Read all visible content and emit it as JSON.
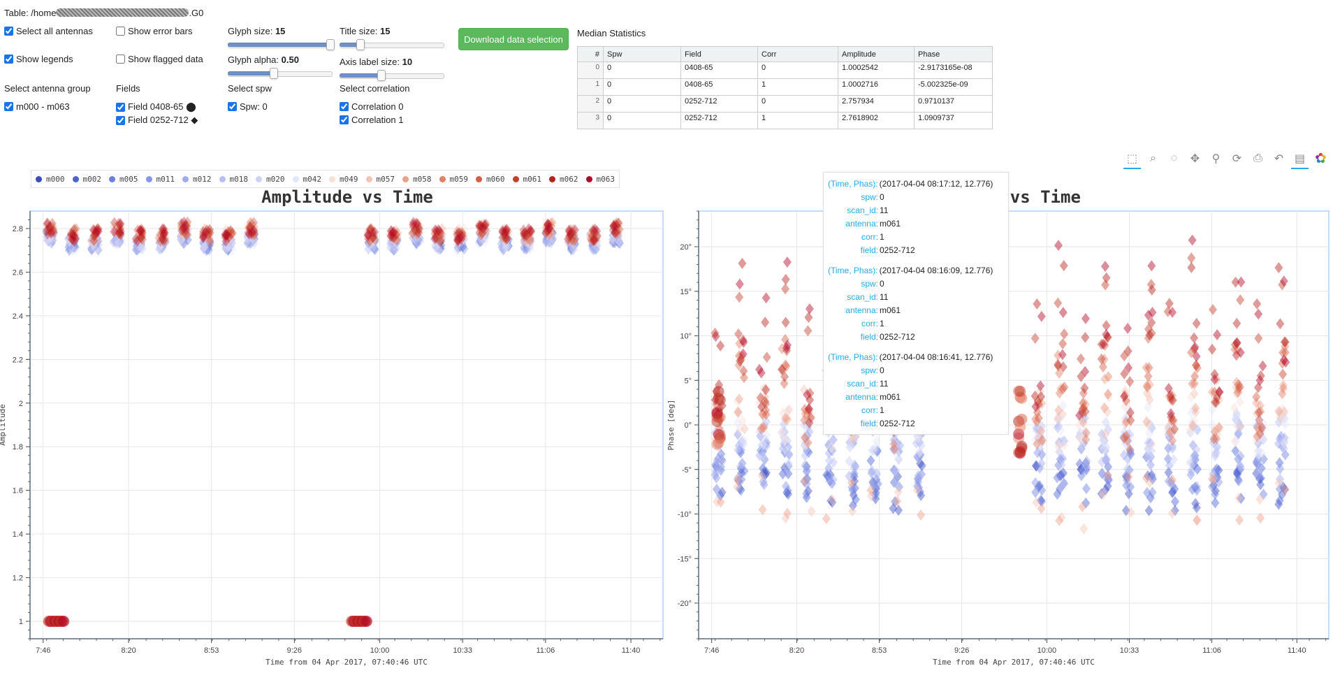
{
  "header": {
    "table_label": "Table: /home",
    "table_suffix": ".G0"
  },
  "controls": {
    "select_all_antennas": "Select all antennas",
    "show_error_bars": "Show error bars",
    "show_legends": "Show legends",
    "show_flagged_data": "Show flagged data",
    "glyph_size_label": "Glyph size:",
    "glyph_size_value": "15",
    "glyph_size_fraction": 0.98,
    "title_size_label": "Title size:",
    "title_size_value": "15",
    "title_size_fraction": 0.2,
    "glyph_alpha_label": "Glyph alpha:",
    "glyph_alpha_value": "0.50",
    "glyph_alpha_fraction": 0.44,
    "axis_label_size_label": "Axis label size:",
    "axis_label_size_value": "10",
    "axis_label_size_fraction": 0.4,
    "download_button": "Download data selection",
    "antenna_group_heading": "Select antenna group",
    "antenna_group_item": "m000 - m063",
    "fields_heading": "Fields",
    "field_1": "Field 0408-65 ⬤",
    "field_2": "Field 0252-712 ◆",
    "spw_heading": "Select spw",
    "spw_item": "Spw: 0",
    "corr_heading": "Select correlation",
    "corr_0": "Correlation 0",
    "corr_1": "Correlation 1"
  },
  "median_stats": {
    "title": "Median Statistics",
    "columns": [
      "#",
      "Spw",
      "Field",
      "Corr",
      "Amplitude",
      "Phase"
    ],
    "rows": [
      [
        "0",
        "0",
        "0408-65",
        "0",
        "1.0002542",
        "-2.9173165e-08"
      ],
      [
        "1",
        "0",
        "0408-65",
        "1",
        "1.0002716",
        "-5.002325e-09"
      ],
      [
        "2",
        "0",
        "0252-712",
        "0",
        "2.757934",
        "0.9710137"
      ],
      [
        "3",
        "0",
        "0252-712",
        "1",
        "2.7618902",
        "1.0909737"
      ]
    ]
  },
  "legend": {
    "items": [
      {
        "name": "m000",
        "color": "#3a4cc0"
      },
      {
        "name": "m002",
        "color": "#4a62d4"
      },
      {
        "name": "m005",
        "color": "#6b7fde"
      },
      {
        "name": "m011",
        "color": "#8795e6"
      },
      {
        "name": "m012",
        "color": "#a0aaee"
      },
      {
        "name": "m018",
        "color": "#b7bef3"
      },
      {
        "name": "m020",
        "color": "#cdd1f6"
      },
      {
        "name": "m042",
        "color": "#e4e6f9"
      },
      {
        "name": "m049",
        "color": "#f8e0da"
      },
      {
        "name": "m057",
        "color": "#f4c3b6"
      },
      {
        "name": "m058",
        "color": "#eda08a"
      },
      {
        "name": "m059",
        "color": "#e37f66"
      },
      {
        "name": "m060",
        "color": "#d55d45"
      },
      {
        "name": "m061",
        "color": "#c43f2c"
      },
      {
        "name": "m062",
        "color": "#b8221c"
      },
      {
        "name": "m063",
        "color": "#b40426"
      }
    ]
  },
  "toolbar": {
    "tools": [
      "box-select",
      "box-zoom",
      "lasso-select",
      "pan",
      "wheel-zoom",
      "reset",
      "save",
      "undo",
      "hover",
      "bokeh-logo"
    ]
  },
  "chart_data": [
    {
      "type": "scatter",
      "title": "Amplitude vs Time",
      "xlabel": "Time from 04 Apr 2017, 07:40:46 UTC",
      "ylabel": "Amplitude",
      "x_ticks": [
        "7:46",
        "8:20",
        "8:53",
        "9:26",
        "10:00",
        "10:33",
        "11:06",
        "11:40"
      ],
      "y_ticks": [
        "1",
        "1.2",
        "1.4",
        "1.6",
        "1.8",
        "2",
        "2.2",
        "2.4",
        "2.6",
        "2.8"
      ],
      "ylim": [
        0.92,
        2.88
      ],
      "series": [
        {
          "name": "Field 0408-65",
          "marker": "circle",
          "clusters_min": [
            7.4,
            9.73
          ],
          "value": 1.0
        },
        {
          "name": "Field 0252-712",
          "marker": "diamond",
          "value": 2.76
        }
      ]
    },
    {
      "type": "scatter",
      "title": "Phase vs Time",
      "xlabel": "Time from 04 Apr 2017, 07:40:46 UTC",
      "ylabel": "Phase [deg]",
      "x_ticks": [
        "7:46",
        "8:20",
        "8:53",
        "9:26",
        "10:00",
        "10:33",
        "11:06",
        "11:40"
      ],
      "y_ticks": [
        "-20°",
        "-15°",
        "-10°",
        "-5°",
        "0°",
        "5°",
        "10°",
        "15°",
        "20°"
      ],
      "ylim": [
        -24,
        24
      ]
    }
  ],
  "tooltip": {
    "entries": [
      {
        "time_phas": "(2017-04-04 08:17:12, 12.776)",
        "spw": "0",
        "scan_id": "11",
        "antenna": "m061",
        "corr": "1",
        "field": "0252-712"
      },
      {
        "time_phas": "(2017-04-04 08:16:09, 12.776)",
        "spw": "0",
        "scan_id": "11",
        "antenna": "m061",
        "corr": "1",
        "field": "0252-712"
      },
      {
        "time_phas": "(2017-04-04 08:16:41, 12.776)",
        "spw": "0",
        "scan_id": "11",
        "antenna": "m061",
        "corr": "1",
        "field": "0252-712"
      }
    ],
    "keys": {
      "time_phas": "(Time, Phas):",
      "spw": "spw:",
      "scan_id": "scan_id:",
      "antenna": "antenna:",
      "corr": "corr:",
      "field": "field:"
    }
  }
}
